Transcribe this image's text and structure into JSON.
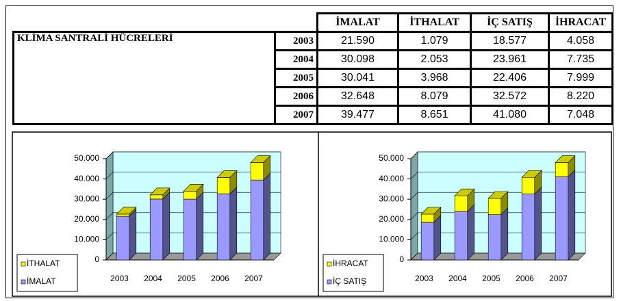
{
  "table": {
    "title": "KLİMA SANTRALİ HÜCRELERİ",
    "columns": [
      "İMALAT",
      "İTHALAT",
      "İÇ SATIŞ",
      "İHRACAT"
    ],
    "rows": [
      [
        "2003",
        "21.590",
        "1.079",
        "18.577",
        "4.058"
      ],
      [
        "2004",
        "30.098",
        "2.053",
        "23.961",
        "7.735"
      ],
      [
        "2005",
        "30.041",
        "3.968",
        "22.406",
        "7.999"
      ],
      [
        "2006",
        "32.648",
        "8.079",
        "32.572",
        "8.220"
      ],
      [
        "2007",
        "39.477",
        "8.651",
        "41.080",
        "7.048"
      ]
    ]
  },
  "chart_data": [
    {
      "type": "bar",
      "stacked": true,
      "categories": [
        "2003",
        "2004",
        "2005",
        "2006",
        "2007"
      ],
      "series": [
        {
          "name": "İMALAT",
          "color": "#9999ff",
          "values": [
            21590,
            30098,
            30041,
            32648,
            39477
          ]
        },
        {
          "name": "İTHALAT",
          "color": "#ffff00",
          "values": [
            1079,
            2053,
            3968,
            8079,
            8651
          ]
        }
      ],
      "ylim": [
        0,
        50000
      ],
      "yticks": [
        0,
        {
          "value": 10000,
          "label": "10.000"
        },
        {
          "value": 20000,
          "label": "20.000"
        },
        {
          "value": 30000,
          "label": "30.000"
        },
        {
          "value": 40000,
          "label": "40.000"
        },
        {
          "value": 50000,
          "label": "50.000"
        }
      ],
      "grid": true,
      "legend": "bottom-left"
    },
    {
      "type": "bar",
      "stacked": true,
      "categories": [
        "2003",
        "2004",
        "2005",
        "2006",
        "2007"
      ],
      "series": [
        {
          "name": "İÇ SATIŞ",
          "color": "#9999ff",
          "values": [
            18577,
            23961,
            22406,
            32572,
            41080
          ]
        },
        {
          "name": "İHRACAT",
          "color": "#ffff00",
          "values": [
            4058,
            7735,
            7999,
            8220,
            7048
          ]
        }
      ],
      "ylim": [
        0,
        50000
      ],
      "yticks": [
        0,
        {
          "value": 10000,
          "label": "10.000"
        },
        {
          "value": 20000,
          "label": "20.000"
        },
        {
          "value": 30000,
          "label": "30.000"
        },
        {
          "value": 40000,
          "label": "40.000"
        },
        {
          "value": 50000,
          "label": "50.000"
        }
      ],
      "grid": true,
      "legend": "bottom-left"
    }
  ]
}
